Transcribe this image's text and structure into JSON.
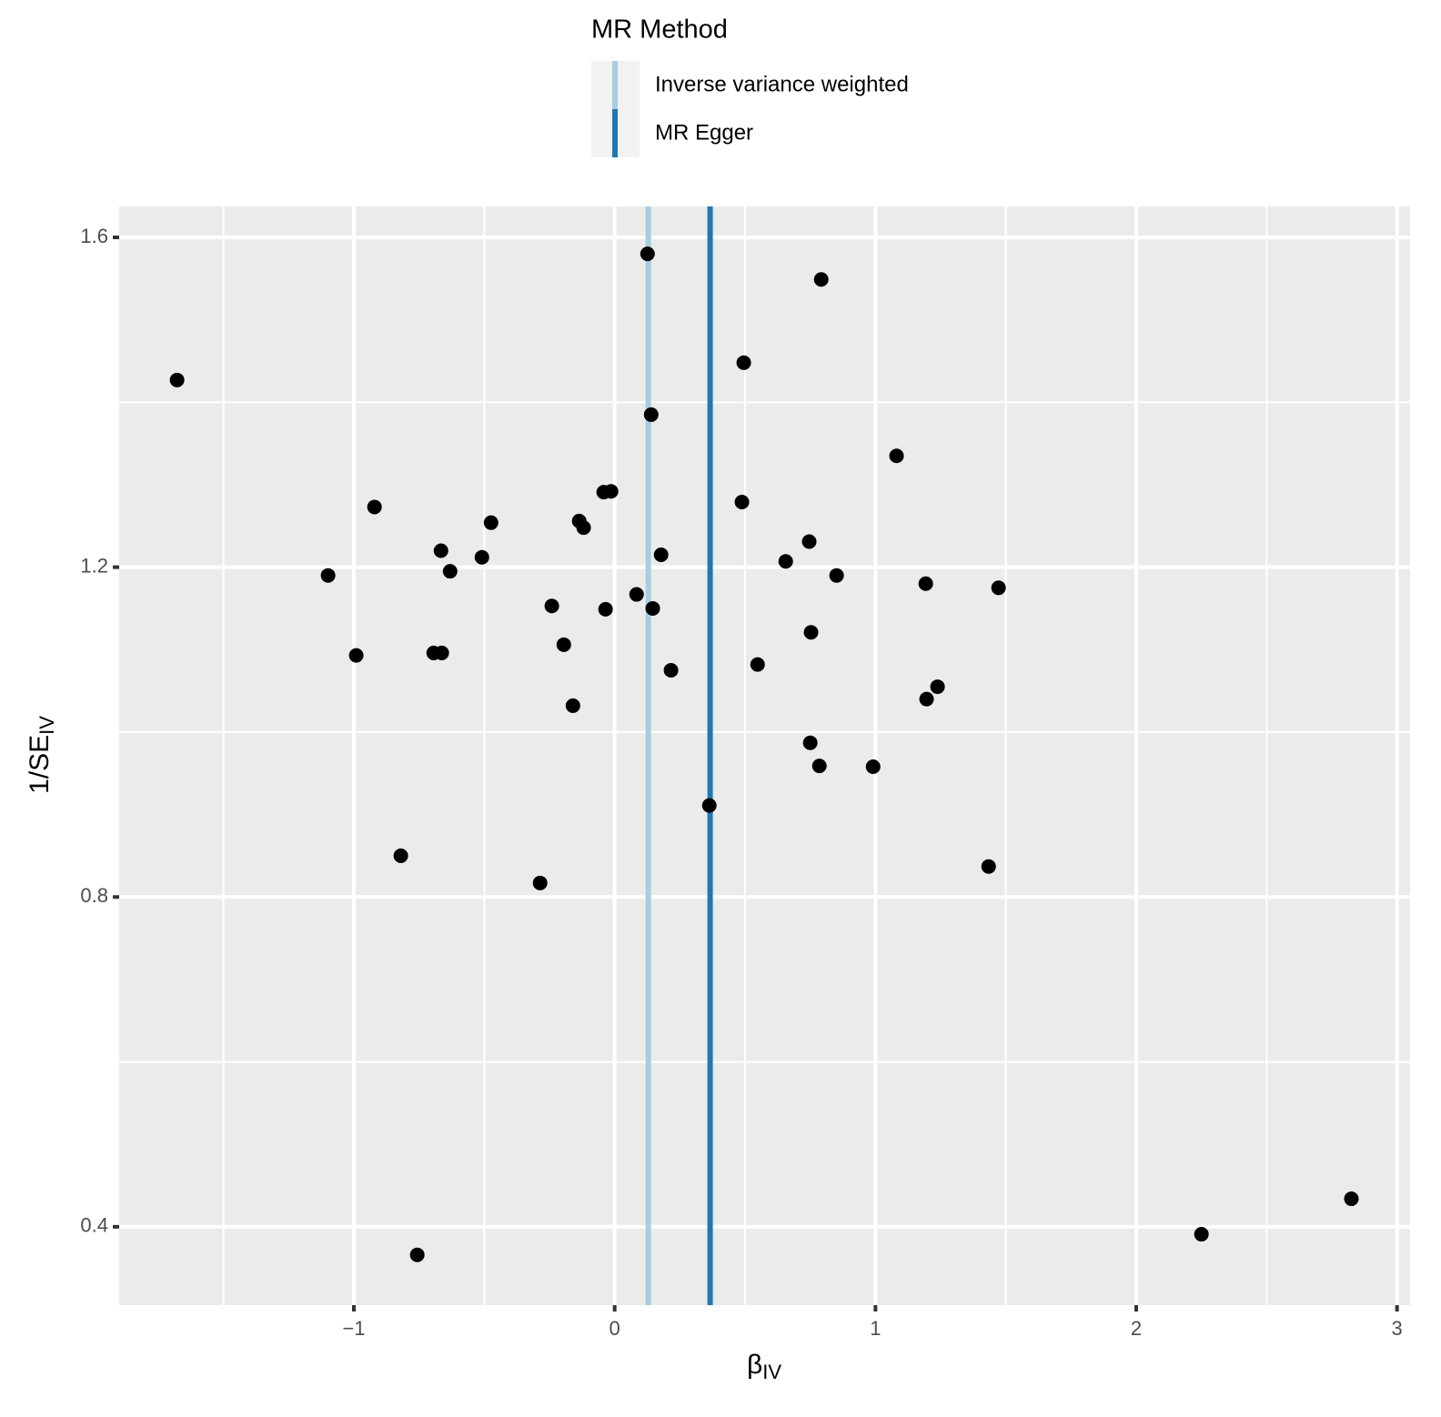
{
  "chart_data": {
    "type": "scatter",
    "legend_title": "MR Method",
    "xlabel": "β",
    "xlabel_sub": "IV",
    "ylabel": "1/SE",
    "ylabel_sub": "IV",
    "xlim": [
      -1.9,
      3.05
    ],
    "ylim": [
      0.305,
      1.6375
    ],
    "xticks": [
      {
        "value": -1,
        "label": "−1"
      },
      0,
      1,
      2,
      3
    ],
    "yticks": [
      0.4,
      0.8,
      1.2,
      1.6
    ],
    "x_minor_grid": [
      -1.5,
      -0.5,
      0.5,
      1.5,
      2.5
    ],
    "y_minor_grid": [
      0.6,
      1.0,
      1.4
    ],
    "grid": true,
    "point_color": "#000000",
    "x": [
      -1.678,
      0.126,
      0.792,
      0.495,
      0.14,
      1.081,
      -0.921,
      -0.042,
      -0.014,
      0.488,
      -0.474,
      -0.136,
      -0.119,
      -0.666,
      -0.509,
      0.178,
      0.746,
      0.656,
      -1.099,
      -0.631,
      0.851,
      1.193,
      1.472,
      0.084,
      -0.241,
      -0.035,
      0.146,
      0.753,
      -0.195,
      -0.991,
      -0.694,
      -0.663,
      0.548,
      0.216,
      1.238,
      1.196,
      -0.16,
      0.75,
      0.785,
      0.991,
      0.363,
      -0.82,
      -0.286,
      1.434,
      2.825,
      2.25,
      -0.757
    ],
    "y": [
      1.427,
      1.58,
      1.549,
      1.448,
      1.385,
      1.335,
      1.273,
      1.291,
      1.292,
      1.279,
      1.254,
      1.256,
      1.248,
      1.22,
      1.212,
      1.215,
      1.231,
      1.207,
      1.19,
      1.195,
      1.19,
      1.18,
      1.175,
      1.167,
      1.153,
      1.149,
      1.15,
      1.121,
      1.106,
      1.093,
      1.096,
      1.096,
      1.082,
      1.075,
      1.055,
      1.04,
      1.032,
      0.987,
      0.959,
      0.958,
      0.911,
      0.85,
      0.817,
      0.837,
      0.434,
      0.391,
      0.366
    ],
    "lines": [
      {
        "name": "Inverse variance weighted",
        "color": "#a6cee3",
        "x": 0.129
      },
      {
        "name": "MR Egger",
        "color": "#1f78b4",
        "x": 0.366
      }
    ]
  }
}
